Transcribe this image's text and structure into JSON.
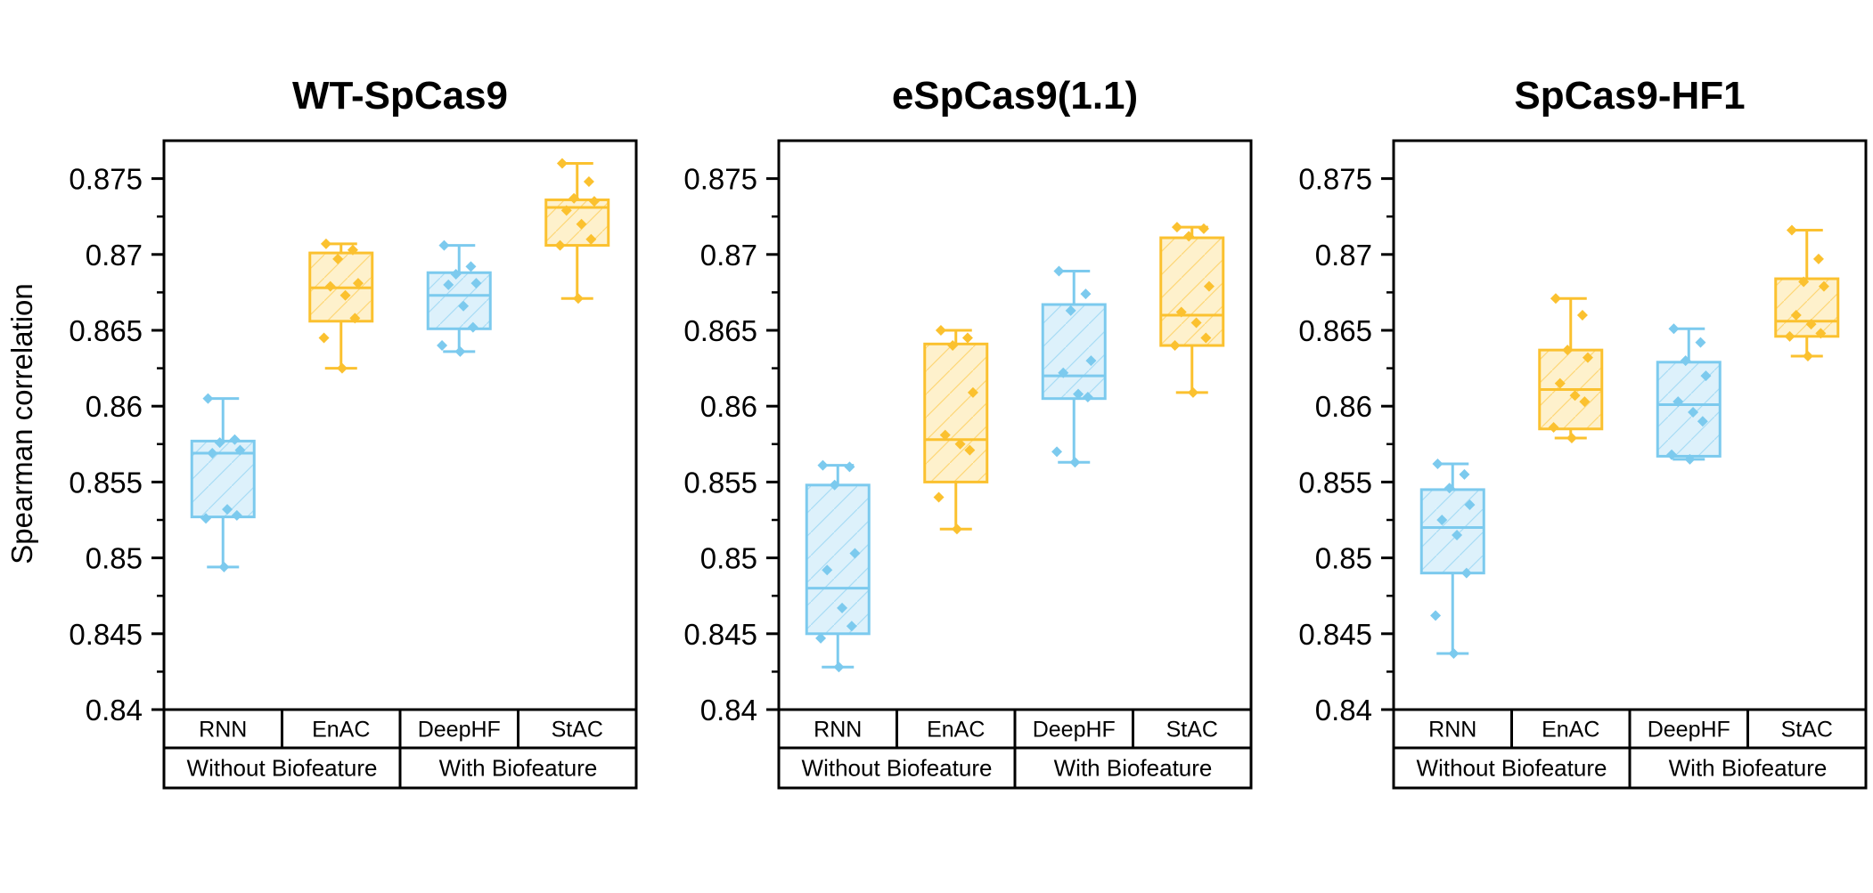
{
  "chart_data": {
    "type": "box",
    "ylabel": "Spearman correlation",
    "ylim": [
      0.84,
      0.8775
    ],
    "yticks": [
      "0.84",
      "0.845",
      "0.85",
      "0.855",
      "0.86",
      "0.865",
      "0.87",
      "0.875"
    ],
    "categories": [
      "RNN",
      "EnAC",
      "DeepHF",
      "StAC"
    ],
    "groups": [
      {
        "label": "Without Biofeature",
        "categories": [
          "RNN",
          "EnAC"
        ]
      },
      {
        "label": "With Biofeature",
        "categories": [
          "DeepHF",
          "StAC"
        ]
      }
    ],
    "colors": {
      "RNN": "#7ccaee",
      "EnAC": "#fbc12f",
      "DeepHF": "#7ccaee",
      "StAC": "#fbc12f"
    },
    "fill_colors": {
      "RNN": "#ddf1fb",
      "EnAC": "#fef1cc",
      "DeepHF": "#ddf1fb",
      "StAC": "#fef1cc"
    },
    "panels": [
      {
        "title": "WT-SpCas9",
        "boxes": [
          {
            "name": "RNN",
            "whisker_low": 0.8494,
            "q1": 0.8527,
            "median": 0.8569,
            "q3": 0.8577,
            "whisker_high": 0.8605,
            "points": [
              0.8605,
              0.8578,
              0.8576,
              0.8571,
              0.8569,
              0.8532,
              0.8528,
              0.8526,
              0.8494
            ]
          },
          {
            "name": "EnAC",
            "whisker_low": 0.8625,
            "q1": 0.8656,
            "median": 0.8678,
            "q3": 0.8701,
            "whisker_high": 0.8707,
            "points": [
              0.8707,
              0.8703,
              0.8697,
              0.8681,
              0.8679,
              0.8673,
              0.8658,
              0.8645,
              0.8625
            ]
          },
          {
            "name": "DeepHF",
            "whisker_low": 0.8636,
            "q1": 0.8651,
            "median": 0.8673,
            "q3": 0.8688,
            "whisker_high": 0.8706,
            "points": [
              0.8706,
              0.8692,
              0.8687,
              0.8681,
              0.868,
              0.8666,
              0.8652,
              0.864,
              0.8636
            ]
          },
          {
            "name": "StAC",
            "whisker_low": 0.8671,
            "q1": 0.8706,
            "median": 0.8731,
            "q3": 0.8736,
            "whisker_high": 0.876,
            "points": [
              0.876,
              0.8748,
              0.8737,
              0.8735,
              0.8729,
              0.872,
              0.871,
              0.8706,
              0.8671
            ]
          }
        ]
      },
      {
        "title": "eSpCas9(1.1)",
        "boxes": [
          {
            "name": "RNN",
            "whisker_low": 0.8428,
            "q1": 0.845,
            "median": 0.848,
            "q3": 0.8548,
            "whisker_high": 0.8561,
            "points": [
              0.8561,
              0.856,
              0.8548,
              0.8503,
              0.8492,
              0.8467,
              0.8455,
              0.8447,
              0.8428
            ]
          },
          {
            "name": "EnAC",
            "whisker_low": 0.8519,
            "q1": 0.855,
            "median": 0.8578,
            "q3": 0.8641,
            "whisker_high": 0.865,
            "points": [
              0.865,
              0.8645,
              0.864,
              0.8609,
              0.8581,
              0.8575,
              0.8571,
              0.854,
              0.8519
            ]
          },
          {
            "name": "DeepHF",
            "whisker_low": 0.8563,
            "q1": 0.8605,
            "median": 0.862,
            "q3": 0.8667,
            "whisker_high": 0.8689,
            "points": [
              0.8689,
              0.8674,
              0.8663,
              0.863,
              0.8622,
              0.8608,
              0.8606,
              0.857,
              0.8563
            ]
          },
          {
            "name": "StAC",
            "whisker_low": 0.8609,
            "q1": 0.864,
            "median": 0.866,
            "q3": 0.8711,
            "whisker_high": 0.8718,
            "points": [
              0.8718,
              0.8717,
              0.8712,
              0.8679,
              0.8662,
              0.8655,
              0.8645,
              0.864,
              0.8609
            ]
          }
        ]
      },
      {
        "title": "SpCas9-HF1",
        "boxes": [
          {
            "name": "RNN",
            "whisker_low": 0.8437,
            "q1": 0.849,
            "median": 0.852,
            "q3": 0.8545,
            "whisker_high": 0.8562,
            "points": [
              0.8562,
              0.8555,
              0.8546,
              0.8535,
              0.8525,
              0.8515,
              0.849,
              0.8462,
              0.8437
            ]
          },
          {
            "name": "EnAC",
            "whisker_low": 0.8579,
            "q1": 0.8585,
            "median": 0.8611,
            "q3": 0.8637,
            "whisker_high": 0.8671,
            "points": [
              0.8671,
              0.866,
              0.8637,
              0.8632,
              0.8615,
              0.8607,
              0.8603,
              0.8586,
              0.8579
            ]
          },
          {
            "name": "DeepHF",
            "whisker_low": 0.8565,
            "q1": 0.8567,
            "median": 0.8601,
            "q3": 0.8629,
            "whisker_high": 0.8651,
            "points": [
              0.8651,
              0.8642,
              0.863,
              0.862,
              0.8603,
              0.8596,
              0.859,
              0.8568,
              0.8565
            ]
          },
          {
            "name": "StAC",
            "whisker_low": 0.8633,
            "q1": 0.8646,
            "median": 0.8656,
            "q3": 0.8684,
            "whisker_high": 0.8716,
            "points": [
              0.8716,
              0.8697,
              0.8682,
              0.8679,
              0.866,
              0.8654,
              0.8648,
              0.8646,
              0.8633
            ]
          }
        ]
      }
    ]
  }
}
